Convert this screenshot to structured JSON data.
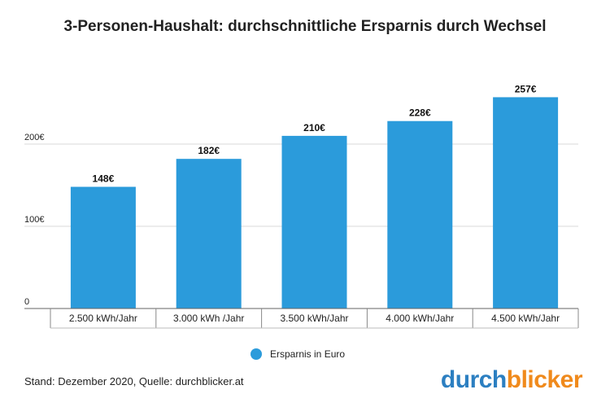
{
  "title": "3-Personen-Haushalt: durchschnittliche Ersparnis durch Wechsel",
  "chart_data": {
    "type": "bar",
    "title": "3-Personen-Haushalt: durchschnittliche Ersparnis durch Wechsel",
    "categories": [
      "2.500 kWh/Jahr",
      "3.000 kWh /Jahr",
      "3.500 kWh/Jahr",
      "4.000 kWh/Jahr",
      "4.500 kWh/Jahr"
    ],
    "series": [
      {
        "name": "Ersparnis in Euro",
        "values": [
          148,
          182,
          210,
          228,
          257
        ],
        "labels": [
          "148€",
          "182€",
          "210€",
          "228€",
          "257€"
        ],
        "color": "#2b9bdb"
      }
    ],
    "yticks": [
      {
        "value": 0,
        "label": "0"
      },
      {
        "value": 100,
        "label": "100€"
      },
      {
        "value": 200,
        "label": "200€"
      }
    ],
    "ylim": [
      0,
      300
    ],
    "grid": true,
    "legend": "bottom-center"
  },
  "legend": {
    "label": "Ersparnis in Euro",
    "color": "#2b9bdb"
  },
  "footer": {
    "source": "Stand: Dezember 2020, Quelle: durchblicker.at"
  },
  "brand": {
    "part1": "durch",
    "part2": "blicker",
    "color1": "#2c7fc1",
    "color2": "#f08a1c"
  }
}
